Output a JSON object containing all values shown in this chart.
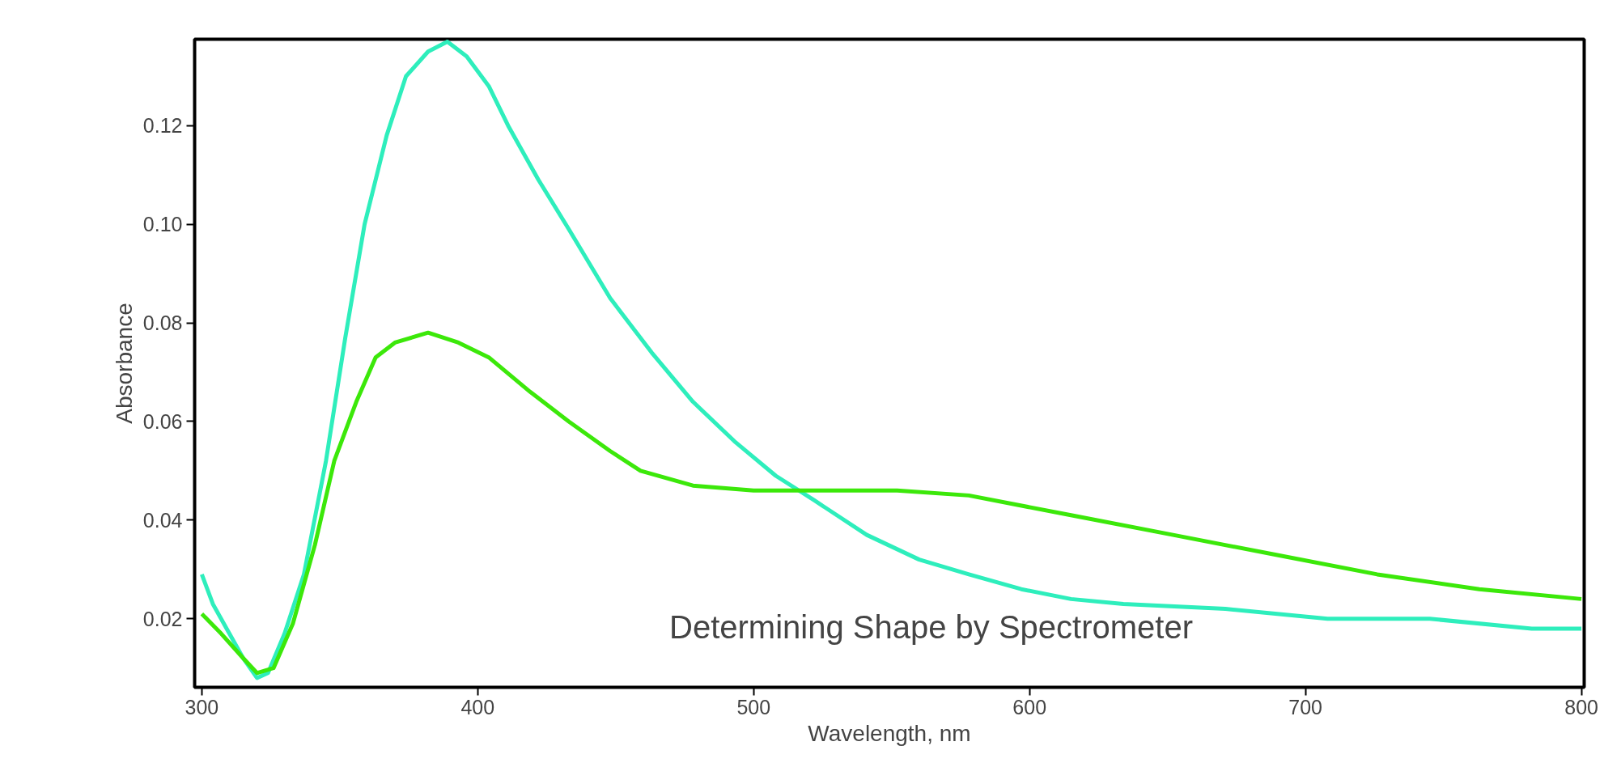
{
  "chart_data": {
    "type": "line",
    "xlabel": "Wavelength, nm",
    "ylabel": "Absorbance",
    "annotations": [
      "Determining Shape by Spectrometer"
    ],
    "xlim": [
      297.4,
      801
    ],
    "ylim": [
      0.0061,
      0.1375
    ],
    "xticks": [
      300,
      400,
      500,
      600,
      700,
      800
    ],
    "yticks": [
      {
        "value": 0.02,
        "label": "0.02"
      },
      {
        "value": 0.04,
        "label": "0.04"
      },
      {
        "value": 0.06,
        "label": "0.06"
      },
      {
        "value": 0.08,
        "label": "0.08"
      },
      {
        "value": 0.1,
        "label": "0.10"
      },
      {
        "value": 0.12,
        "label": "0.12"
      }
    ],
    "grid": false,
    "series": [
      {
        "color": "#2eeebc",
        "x": [
          300,
          304,
          309,
          315,
          320,
          324,
          330,
          337,
          345,
          352,
          359,
          367,
          374,
          382,
          389,
          396,
          404,
          411,
          422,
          433,
          448,
          463,
          478,
          493,
          508,
          522,
          541,
          560,
          578,
          597,
          615,
          634,
          671,
          708,
          745,
          782,
          800
        ],
        "values": [
          0.029,
          0.023,
          0.018,
          0.012,
          0.008,
          0.009,
          0.017,
          0.029,
          0.052,
          0.077,
          0.1,
          0.118,
          0.13,
          0.135,
          0.137,
          0.134,
          0.128,
          0.12,
          0.109,
          0.099,
          0.085,
          0.074,
          0.064,
          0.056,
          0.049,
          0.044,
          0.037,
          0.032,
          0.029,
          0.026,
          0.024,
          0.023,
          0.022,
          0.02,
          0.02,
          0.018,
          0.018
        ]
      },
      {
        "color": "#3ce80a",
        "x": [
          300,
          307,
          315,
          320,
          326,
          333,
          341,
          348,
          356,
          363,
          370,
          382,
          393,
          404,
          419,
          433,
          448,
          459,
          478,
          500,
          522,
          552,
          578,
          615,
          652,
          689,
          726,
          763,
          800
        ],
        "values": [
          0.021,
          0.017,
          0.012,
          0.009,
          0.01,
          0.019,
          0.035,
          0.052,
          0.064,
          0.073,
          0.076,
          0.078,
          0.076,
          0.073,
          0.066,
          0.06,
          0.054,
          0.05,
          0.047,
          0.046,
          0.046,
          0.046,
          0.045,
          0.041,
          0.037,
          0.033,
          0.029,
          0.026,
          0.024
        ]
      }
    ]
  }
}
